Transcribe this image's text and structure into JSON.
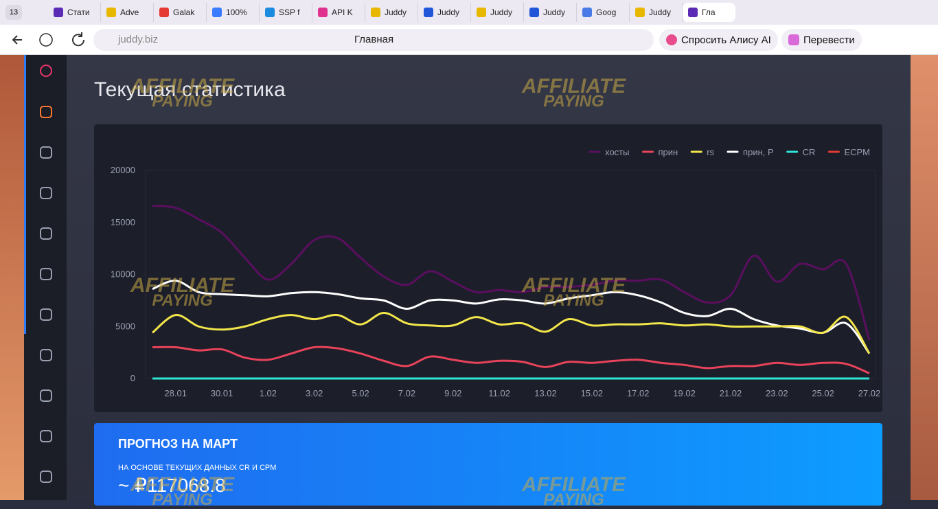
{
  "browser": {
    "tab_count": "13",
    "tabs": [
      "Стати",
      "Adve",
      "Galak",
      "100%",
      "SSP f",
      "API K",
      "Juddy",
      "Juddy",
      "Juddy",
      "Juddy",
      "Goog",
      "Juddy",
      "Гла"
    ],
    "url": "juddy.biz",
    "page_title": "Главная",
    "alice": "Спросить Алису AI",
    "translate": "Перевести"
  },
  "page": {
    "heading": "Текущая статистика",
    "watermark": [
      "AFFILIATE",
      "PAYING"
    ],
    "forecast": {
      "title": "ПРОГНОЗ НА МАРТ",
      "subtitle": "НА ОСНОВЕ ТЕКУЩИХ ДАННЫХ CR И CPM",
      "value": "~ ₽117068.8"
    }
  },
  "chart_data": {
    "type": "line",
    "legend": "top-right",
    "grid": false,
    "categories": [
      null,
      "28.01",
      null,
      "30.01",
      null,
      "1.02",
      null,
      "3.02",
      null,
      "5.02",
      null,
      "7.02",
      null,
      "9.02",
      null,
      "11.02",
      null,
      "13.02",
      null,
      "15.02",
      null,
      "17.02",
      null,
      "19.02",
      null,
      "21.02",
      null,
      "23.02",
      null,
      "25.02",
      null,
      "27.02"
    ],
    "ylim": [
      0,
      20000
    ],
    "yticks": [
      0,
      5000,
      10000,
      15000,
      20000
    ],
    "series": [
      {
        "name": "хосты",
        "color": "#5a0f5e",
        "values": [
          16600,
          16400,
          15300,
          14000,
          11600,
          9500,
          11000,
          13300,
          13500,
          11600,
          9800,
          9000,
          10300,
          9300,
          8300,
          8500,
          8300,
          8800,
          8800,
          9000,
          9400,
          9400,
          9500,
          8300,
          7300,
          8000,
          11800,
          9300,
          11000,
          10500,
          11000,
          3700
        ]
      },
      {
        "name": "прин",
        "color": "#e8435a",
        "values": [
          3000,
          3000,
          2700,
          2800,
          2000,
          1800,
          2400,
          3000,
          2900,
          2400,
          1700,
          1200,
          2100,
          1800,
          1500,
          1700,
          1600,
          1100,
          1600,
          1500,
          1700,
          1800,
          1500,
          1300,
          1000,
          1200,
          1200,
          1500,
          1300,
          1500,
          1400,
          500
        ]
      },
      {
        "name": "rs",
        "color": "#f2e64a",
        "values": [
          4400,
          6100,
          5000,
          4700,
          5000,
          5700,
          6100,
          5700,
          6100,
          5200,
          6300,
          5300,
          5100,
          5100,
          5900,
          5200,
          5300,
          4500,
          5700,
          5100,
          5200,
          5200,
          5300,
          5100,
          5200,
          5000,
          5000,
          5000,
          5000,
          4400,
          5900,
          2400
        ]
      },
      {
        "name": "прин, Р",
        "color": "#ffffff",
        "values": [
          8600,
          9400,
          8300,
          8100,
          8000,
          7900,
          8200,
          8300,
          8100,
          7700,
          7500,
          6700,
          7500,
          7500,
          7200,
          7600,
          7500,
          7200,
          7700,
          8000,
          8300,
          8000,
          7300,
          6300,
          6000,
          6700,
          5700,
          5100,
          4800,
          4400,
          5300,
          2400
        ]
      },
      {
        "name": "CR",
        "color": "#2ee6d6",
        "values": [
          0,
          0,
          0,
          0,
          0,
          0,
          0,
          0,
          0,
          0,
          0,
          0,
          0,
          0,
          0,
          0,
          0,
          0,
          0,
          0,
          0,
          0,
          0,
          0,
          0,
          0,
          0,
          0,
          0,
          0,
          0,
          0
        ]
      },
      {
        "name": "ECPM",
        "color": "#e53935",
        "values": [
          0,
          0,
          0,
          0,
          0,
          0,
          0,
          0,
          0,
          0,
          0,
          0,
          0,
          0,
          0,
          0,
          0,
          0,
          0,
          0,
          0,
          0,
          0,
          0,
          0,
          0,
          0,
          0,
          0,
          0,
          0,
          0
        ]
      }
    ]
  }
}
